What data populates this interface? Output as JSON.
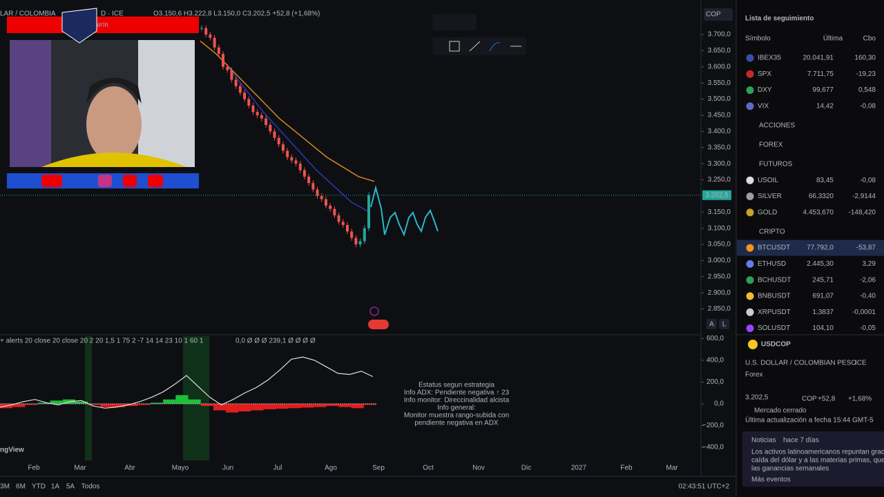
{
  "header": {
    "symbol": "LAR / COLOMBIA",
    "exchange": "D · ICE",
    "ohlc": "O3.150,6 H3.222,8 L3.150,0 C3.202,5 +52,8 (+1,68%)",
    "currency": "COP"
  },
  "streamer": {
    "logo": "arin"
  },
  "price_axis": {
    "ylim": [
      2770,
      3807
    ],
    "ticks": [
      {
        "value": 3700,
        "label": "3.700,0"
      },
      {
        "value": 3650,
        "label": "3.650,0"
      },
      {
        "value": 3600,
        "label": "3.600,0"
      },
      {
        "value": 3550,
        "label": "3.550,0"
      },
      {
        "value": 3500,
        "label": "3.500,0"
      },
      {
        "value": 3450,
        "label": "3.450,0"
      },
      {
        "value": 3400,
        "label": "3.400,0"
      },
      {
        "value": 3350,
        "label": "3.350,0"
      },
      {
        "value": 3300,
        "label": "3.300,0"
      },
      {
        "value": 3250,
        "label": "3.250,0"
      },
      {
        "value": 3150,
        "label": "3.150,0"
      },
      {
        "value": 3100,
        "label": "3.100,0"
      },
      {
        "value": 3050,
        "label": "3.050,0"
      },
      {
        "value": 3000,
        "label": "3.000,0"
      },
      {
        "value": 2950,
        "label": "2.950,0"
      },
      {
        "value": 2900,
        "label": "2.900,0"
      },
      {
        "value": 2850,
        "label": "2.850,0"
      }
    ]
  },
  "last_price": {
    "value": 3202.5,
    "label": "3.202,5"
  },
  "price_series": {
    "close": [
      3720,
      3700,
      3690,
      3660,
      3640,
      3600,
      3590,
      3560,
      3540,
      3520,
      3500,
      3480,
      3460,
      3450,
      3440,
      3420,
      3400,
      3380,
      3360,
      3340,
      3320,
      3310,
      3300,
      3280,
      3260,
      3240,
      3220,
      3200,
      3190,
      3170,
      3160,
      3140,
      3120,
      3110,
      3090,
      3070,
      3050,
      3060,
      3100,
      3202.5
    ],
    "ma_slow": [
      3680,
      3640,
      3590,
      3540,
      3490,
      3440,
      3400,
      3360,
      3320,
      3290,
      3260,
      3245
    ],
    "ma_fast": [
      3600,
      3530,
      3460,
      3400,
      3340,
      3280,
      3230,
      3180,
      3150
    ]
  },
  "indicator": {
    "legend": "+ alerts 20 close 20 close 20 2 20 1,5 1 75 2 -7 14 14 23 10 1 60 1",
    "values_legend": "0,0 Ø Ø Ø 239,1 Ø Ø Ø Ø",
    "ylim": [
      -527,
      635
    ],
    "ticks": [
      {
        "value": 600,
        "label": "600,0"
      },
      {
        "value": 400,
        "label": "400,0"
      },
      {
        "value": 200,
        "label": "200,0"
      },
      {
        "value": 0,
        "label": "0,0"
      },
      {
        "value": -200,
        "label": "−200,0"
      },
      {
        "value": -400,
        "label": "−400,0"
      }
    ],
    "line": [
      -30,
      -10,
      20,
      40,
      10,
      -10,
      20,
      30,
      -20,
      -40,
      -30,
      -10,
      20,
      60,
      110,
      180,
      260,
      160,
      60,
      -10,
      40,
      100,
      150,
      220,
      310,
      410,
      430,
      400,
      340,
      280,
      270,
      300,
      250
    ],
    "histogram": [
      -40,
      -30,
      -10,
      10,
      30,
      40,
      20,
      -10,
      -30,
      -30,
      -20,
      -10,
      10,
      40,
      80,
      40,
      -20,
      -60,
      -80,
      -70,
      -60,
      -50,
      -45,
      -40,
      -35,
      -30,
      -20,
      -30,
      -40,
      -10
    ],
    "status": [
      "Estatus segun estrategia",
      "Info ADX: Pendiente negativa ↑ 23",
      "Info monitor: Direccinalidad alcista",
      "Info general:",
      "Monitor muestra rango-subida con",
      "pendiente negativa en ADX"
    ]
  },
  "time_axis": [
    "Feb",
    "Mar",
    "Abr",
    "Mayo",
    "Jun",
    "Jul",
    "Ago",
    "Sep",
    "Oct",
    "Nov",
    "Dic",
    "2027",
    "Feb",
    "Mar"
  ],
  "toolbar": {
    "ranges": [
      "3M",
      "6M",
      "YTD",
      "1A",
      "5A",
      "Todos"
    ],
    "clock": "02:43:51 UTC+2",
    "brand": "ngView",
    "scale_buttons": [
      "A",
      "L"
    ]
  },
  "watchlist": {
    "title": "Lista de seguimiento",
    "columns": [
      "Símbolo",
      "Última",
      "Cbo"
    ],
    "items": [
      {
        "symbol": "IBEX35",
        "last": "20.041,91",
        "change": "160,30",
        "icon_color": "#3b4fa8"
      },
      {
        "symbol": "SPX",
        "last": "7.711,75",
        "change": "-19,23",
        "icon_color": "#c62828"
      },
      {
        "symbol": "DXY",
        "last": "99,677",
        "change": "0,548",
        "icon_color": "#2e9e5b"
      },
      {
        "symbol": "VIX",
        "last": "14,42",
        "change": "-0,08",
        "icon_color": "#5c6bc0"
      },
      {
        "section": "ACCIONES"
      },
      {
        "section": "FOREX"
      },
      {
        "section": "FUTUROS"
      },
      {
        "symbol": "USOIL",
        "last": "83,45",
        "change": "-0,08",
        "icon_color": "#dddddd"
      },
      {
        "symbol": "SILVER",
        "last": "66,3320",
        "change": "-2,9144",
        "icon_color": "#9e9e9e"
      },
      {
        "symbol": "GOLD",
        "last": "4.453,670",
        "change": "-148,420",
        "icon_color": "#c9a227"
      },
      {
        "section": "CRIPTO"
      },
      {
        "symbol": "BTCUSDT",
        "last": "77.792,0",
        "change": "-53,87",
        "icon_color": "#f7931a"
      },
      {
        "symbol": "ETHUSD",
        "last": "2.445,30",
        "change": "3,29",
        "icon_color": "#627eea"
      },
      {
        "symbol": "BCHUSDT",
        "last": "245,71",
        "change": "-2,06",
        "icon_color": "#2e9e5b"
      },
      {
        "symbol": "BNBUSDT",
        "last": "691,07",
        "change": "-0,40",
        "icon_color": "#f3ba2f"
      },
      {
        "symbol": "XRPUSDT",
        "last": "1,3837",
        "change": "-0,0001",
        "icon_color": "#cccccc"
      },
      {
        "symbol": "SOLUSDT",
        "last": "104,10",
        "change": "-0,05",
        "icon_color": "#9945ff"
      }
    ]
  },
  "detail": {
    "symbol": "USDCOP",
    "name": "U.S. DOLLAR / COLOMBIAN PESO",
    "exchange": "ICE",
    "market": "Forex",
    "price": "3.202,5",
    "currency": "COP",
    "change": "+52,8",
    "change_pct": "+1,68%",
    "status": "Mercado cerrado",
    "updated": "Última actualización a fecha 15:44 GMT-5",
    "news": {
      "label": "Noticias",
      "age": "hace 7 días",
      "lines": [
        "Los activos latinoamericanos repuntan gracias",
        "caída del dólar y a las materias primas, que i",
        "las ganancias semanales"
      ],
      "more": "Más eventos"
    }
  }
}
